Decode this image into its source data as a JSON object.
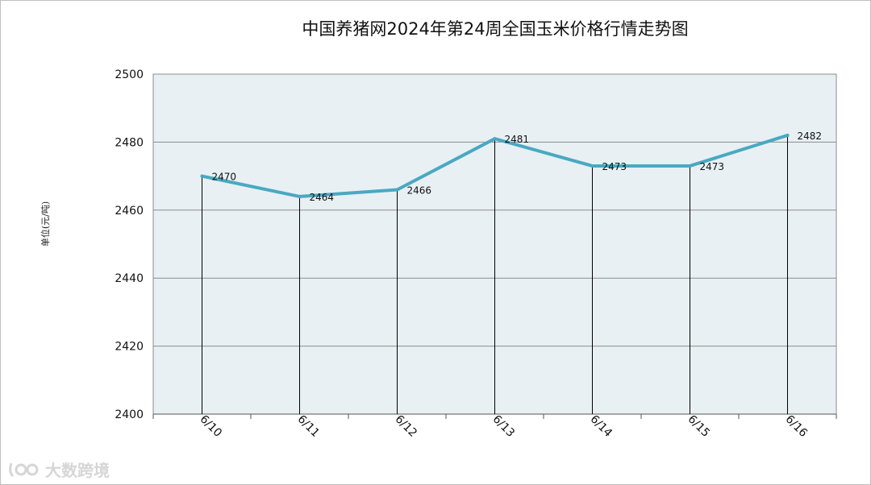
{
  "chart_data": {
    "type": "line",
    "title": "中国养猪网2024年第24周全国玉米价格行情走势图",
    "ylabel": "单位(元/吨)",
    "xlabel": "",
    "categories": [
      "6/10",
      "6/11",
      "6/12",
      "6/13",
      "6/14",
      "6/15",
      "6/16"
    ],
    "values": [
      2470,
      2464,
      2466,
      2481,
      2473,
      2473,
      2482
    ],
    "data_labels": [
      "2470",
      "2464",
      "2466",
      "2481",
      "2473",
      "2473",
      "2482"
    ],
    "ylim": [
      2400,
      2500
    ],
    "yticks": [
      2400,
      2420,
      2440,
      2460,
      2480,
      2500
    ],
    "grid": true,
    "drop_lines": true,
    "colors": {
      "line": "#4aa8c2",
      "plot_background": "#e8f0f4",
      "grid": "#8c8c8c",
      "drop_line": "#000000"
    }
  },
  "watermark": {
    "text": "大数跨境",
    "icon": "logo-icon"
  }
}
